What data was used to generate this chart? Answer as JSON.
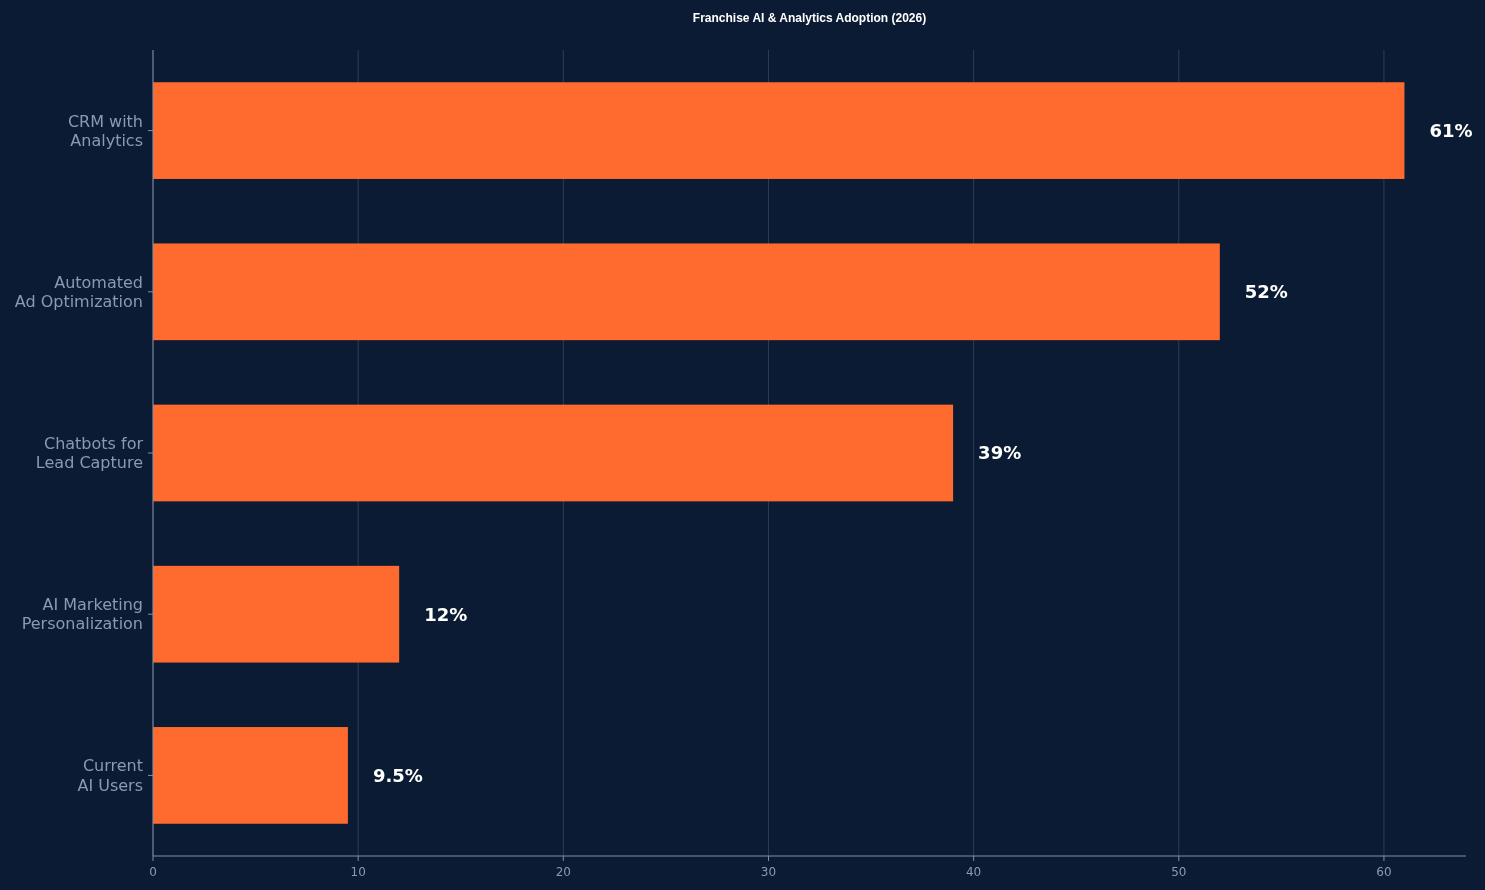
{
  "chart_data": {
    "type": "bar",
    "orientation": "horizontal",
    "title": "Franchise AI & Analytics Adoption (2026)",
    "categories": [
      "CRM with\nAnalytics",
      "Automated\nAd Optimization",
      "Chatbots for\nLead Capture",
      "AI Marketing\nPersonalization",
      "Current\nAI Users"
    ],
    "values": [
      61,
      52,
      39,
      12,
      9.5
    ],
    "value_labels": [
      "61%",
      "52%",
      "39%",
      "12%",
      "9.5%"
    ],
    "color": "#ff6b2f",
    "xlim": [
      0,
      64
    ],
    "xticks": [
      0,
      10,
      20,
      30,
      40,
      50,
      60
    ],
    "grid": "x"
  }
}
